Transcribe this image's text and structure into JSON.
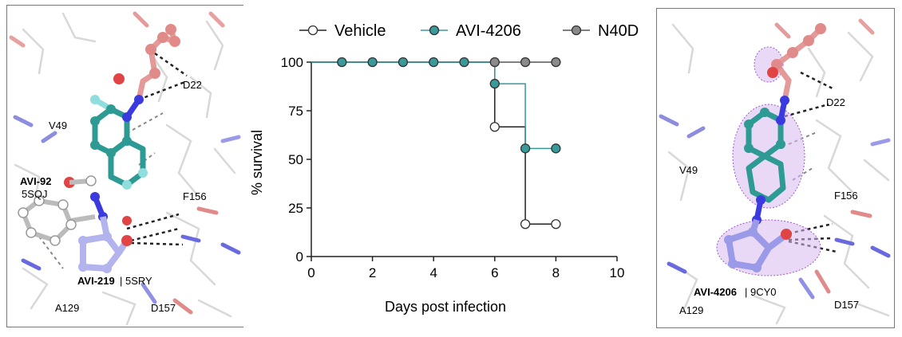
{
  "left_structure": {
    "labels": {
      "d22": "D22",
      "v49": "V49",
      "f156": "F156",
      "a129": "A129",
      "d157": "D157",
      "ligand_a_name": "AVI-92",
      "ligand_a_pdb": "5SQJ",
      "ligand_b_name": "AVI-219",
      "ligand_b_pdb": "| 5SRY"
    }
  },
  "right_structure": {
    "labels": {
      "d22": "D22",
      "v49": "V49",
      "f156": "F156",
      "a129": "A129",
      "d157": "D157",
      "ligand_name": "AVI-4206",
      "ligand_pdb": "| 9CY0"
    }
  },
  "chart_data": {
    "type": "line",
    "step": true,
    "xlabel": "Days post infection",
    "ylabel": "% survival",
    "xlim": [
      0,
      10
    ],
    "ylim": [
      0,
      100
    ],
    "xticks": [
      "0",
      "2",
      "4",
      "6",
      "8",
      "10"
    ],
    "yticks": [
      "0",
      "25",
      "50",
      "75",
      "100"
    ],
    "legend_position": "top",
    "series": [
      {
        "name": "Vehicle",
        "color": "#222222",
        "fill": "#ffffff",
        "x": [
          0,
          6,
          6,
          7,
          7,
          8
        ],
        "y": [
          100,
          100,
          66.7,
          66.7,
          16.7,
          16.7
        ],
        "markers_x": [
          6,
          7,
          8
        ],
        "markers_y": [
          66.7,
          16.7,
          16.7
        ]
      },
      {
        "name": "AVI-4206",
        "color": "#3a9a9a",
        "fill": "#3a9a9a",
        "x": [
          0,
          6,
          6,
          7,
          7,
          8
        ],
        "y": [
          100,
          100,
          88.9,
          88.9,
          55.6,
          55.6
        ],
        "markers_x": [
          1,
          2,
          3,
          4,
          5,
          6,
          7,
          8
        ],
        "markers_y": [
          100,
          100,
          100,
          100,
          100,
          88.9,
          55.6,
          55.6
        ]
      },
      {
        "name": "N40D",
        "color": "#555555",
        "fill": "#8a8a8a",
        "x": [
          0,
          8
        ],
        "y": [
          100,
          100
        ],
        "markers_x": [
          6,
          7,
          8
        ],
        "markers_y": [
          100,
          100,
          100
        ]
      }
    ]
  }
}
